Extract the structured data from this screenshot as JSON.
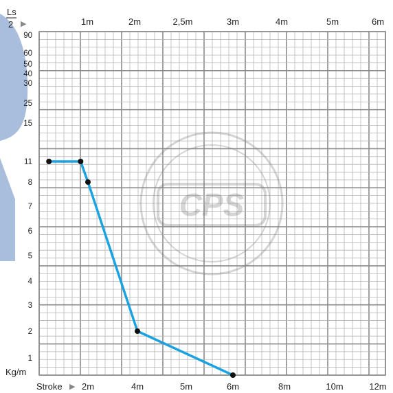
{
  "chart_data": {
    "type": "line",
    "title": "",
    "top_axis": {
      "label_numerator": "Ls",
      "label_denominator": "2",
      "marker": "▶",
      "ticks": [
        "1m",
        "2m",
        "2,5m",
        "3m",
        "4m",
        "5m",
        "6m"
      ]
    },
    "bottom_axis": {
      "label": "Stroke",
      "marker": "▶",
      "ticks": [
        "2m",
        "4m",
        "5m",
        "6m",
        "8m",
        "10m",
        "12m"
      ]
    },
    "y_axis": {
      "unit_label": "Kg/m",
      "ticks": [
        "1",
        "2",
        "3",
        "4",
        "5",
        "6",
        "7",
        "8",
        "11",
        "15",
        "25",
        "30",
        "40",
        "50",
        "60",
        "90"
      ]
    },
    "grid": true,
    "series": [
      {
        "color": "#1aa3e0",
        "points": [
          {
            "x_stroke": "0.4m",
            "y": "11"
          },
          {
            "x_stroke": "1.7m",
            "y": "11"
          },
          {
            "x_stroke": "2m",
            "y": "8"
          },
          {
            "x_stroke": "4m",
            "y": "2"
          },
          {
            "x_stroke": "6m",
            "y": "0.25"
          }
        ]
      }
    ]
  },
  "watermark": {
    "text": "CPS"
  },
  "colors": {
    "line": "#1aa3e0",
    "grid_minor": "#b5b5b5",
    "grid_major": "#8a8a8a",
    "marker": "#111111",
    "sidebar": "#a9bddc"
  }
}
